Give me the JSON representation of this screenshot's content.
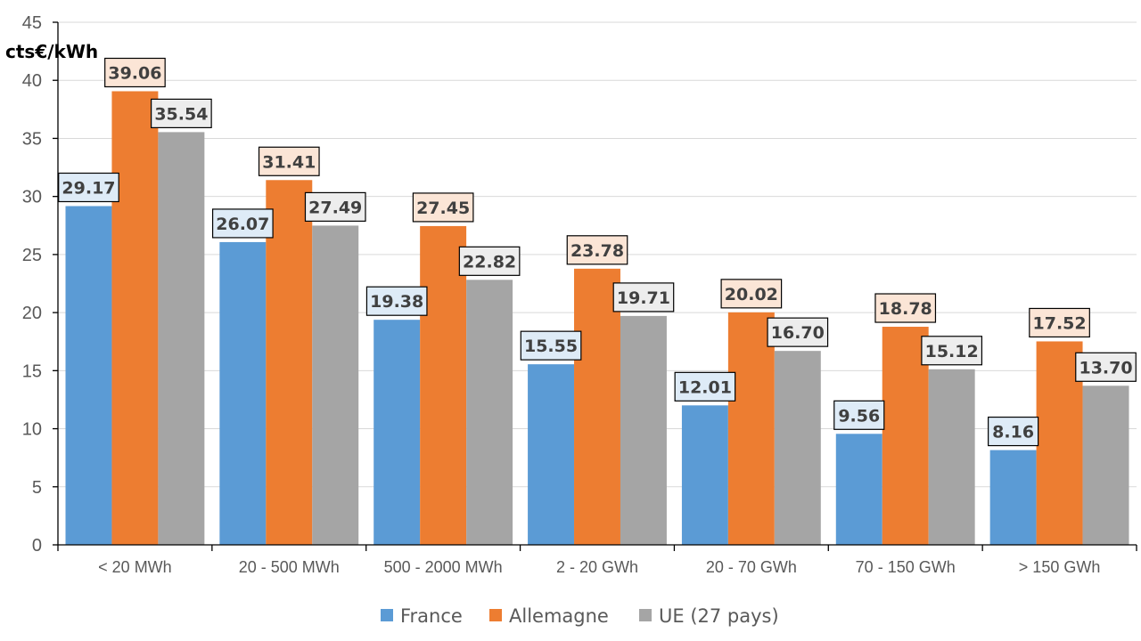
{
  "chart_data": {
    "type": "bar",
    "title": "",
    "unit_label": "cts€/kWh",
    "xlabel": "",
    "ylabel": "cts€/kWh",
    "ylim": [
      0,
      45
    ],
    "yticks": [
      0,
      5,
      10,
      15,
      20,
      25,
      30,
      35,
      40,
      45
    ],
    "grid": true,
    "legend_position": "bottom-center",
    "categories": [
      "< 20 MWh",
      "20 - 500 MWh",
      "500 - 2000 MWh",
      "2 - 20 GWh",
      "20 - 70 GWh",
      "70 - 150 GWh",
      "> 150 GWh"
    ],
    "series": [
      {
        "name": "France",
        "color": "#5B9BD5",
        "label_bg": "#DEEBF7",
        "values": [
          29.17,
          26.07,
          19.38,
          15.55,
          12.01,
          9.56,
          8.16
        ],
        "labels": [
          "29.17",
          "26.07",
          "19.38",
          "15.55",
          "12.01",
          "9.56",
          "8.16"
        ]
      },
      {
        "name": "Allemagne",
        "color": "#ED7D31",
        "label_bg": "#FBE5D6",
        "values": [
          39.06,
          31.41,
          27.45,
          23.78,
          20.02,
          18.78,
          17.52
        ],
        "labels": [
          "39.06",
          "31.41",
          "27.45",
          "23.78",
          "20.02",
          "18.78",
          "17.52"
        ]
      },
      {
        "name": "UE (27 pays)",
        "color": "#A5A5A5",
        "label_bg": "#EDEDED",
        "values": [
          35.54,
          27.49,
          22.82,
          19.71,
          16.7,
          15.12,
          13.7
        ],
        "labels": [
          "35.54",
          "27.49",
          "22.82",
          "19.71",
          "16.70",
          "15.12",
          "13.70"
        ]
      }
    ]
  }
}
